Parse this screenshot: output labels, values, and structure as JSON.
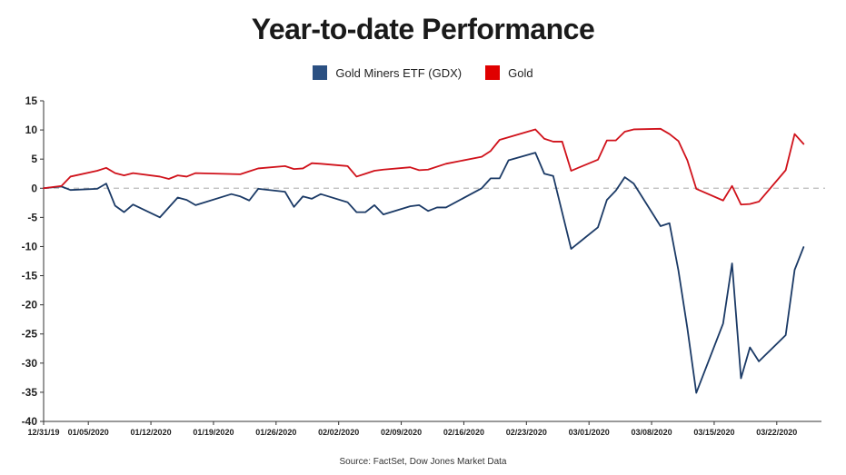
{
  "chart_data": {
    "type": "line",
    "title": "Year-to-date Performance",
    "xlabel": "",
    "ylabel": "",
    "ylim": [
      -40,
      15
    ],
    "yticks": [
      15,
      10,
      5,
      0,
      -5,
      -10,
      -15,
      -20,
      -25,
      -30,
      -35,
      -40
    ],
    "x_range": [
      "2019-12-31",
      "2020-03-27"
    ],
    "x_tick_labels": [
      {
        "date": "2019-12-31",
        "label": "12/31/19"
      },
      {
        "date": "2020-01-05",
        "label": "01/05/2020"
      },
      {
        "date": "2020-01-12",
        "label": "01/12/2020"
      },
      {
        "date": "2020-01-19",
        "label": "01/19/2020"
      },
      {
        "date": "2020-01-26",
        "label": "01/26/2020"
      },
      {
        "date": "2020-02-02",
        "label": "02/02/2020"
      },
      {
        "date": "2020-02-09",
        "label": "02/09/2020"
      },
      {
        "date": "2020-02-16",
        "label": "02/16/2020"
      },
      {
        "date": "2020-02-23",
        "label": "02/23/2020"
      },
      {
        "date": "2020-03-01",
        "label": "03/01/2020"
      },
      {
        "date": "2020-03-08",
        "label": "03/08/2020"
      },
      {
        "date": "2020-03-15",
        "label": "03/15/2020"
      },
      {
        "date": "2020-03-22",
        "label": "03/22/2020"
      }
    ],
    "zero_line": true,
    "grid": false,
    "legend_position": "top-center",
    "series": [
      {
        "name": "Gold Miners ETF (GDX)",
        "color": "#1b3a66",
        "legend_color": "#2b5082",
        "points": [
          [
            "2019-12-31",
            0.0
          ],
          [
            "2020-01-02",
            0.3
          ],
          [
            "2020-01-03",
            -0.3
          ],
          [
            "2020-01-06",
            -0.1
          ],
          [
            "2020-01-07",
            0.8
          ],
          [
            "2020-01-08",
            -3.0
          ],
          [
            "2020-01-09",
            -4.1
          ],
          [
            "2020-01-10",
            -2.8
          ],
          [
            "2020-01-13",
            -5.0
          ],
          [
            "2020-01-15",
            -1.6
          ],
          [
            "2020-01-16",
            -2.0
          ],
          [
            "2020-01-17",
            -2.9
          ],
          [
            "2020-01-21",
            -1.0
          ],
          [
            "2020-01-22",
            -1.4
          ],
          [
            "2020-01-23",
            -2.1
          ],
          [
            "2020-01-24",
            -0.1
          ],
          [
            "2020-01-27",
            -0.6
          ],
          [
            "2020-01-28",
            -3.2
          ],
          [
            "2020-01-29",
            -1.4
          ],
          [
            "2020-01-30",
            -1.8
          ],
          [
            "2020-01-31",
            -1.0
          ],
          [
            "2020-02-03",
            -2.4
          ],
          [
            "2020-02-04",
            -4.1
          ],
          [
            "2020-02-05",
            -4.1
          ],
          [
            "2020-02-06",
            -2.9
          ],
          [
            "2020-02-07",
            -4.5
          ],
          [
            "2020-02-10",
            -3.1
          ],
          [
            "2020-02-11",
            -2.9
          ],
          [
            "2020-02-12",
            -3.9
          ],
          [
            "2020-02-13",
            -3.3
          ],
          [
            "2020-02-14",
            -3.3
          ],
          [
            "2020-02-18",
            0.0
          ],
          [
            "2020-02-19",
            1.7
          ],
          [
            "2020-02-20",
            1.7
          ],
          [
            "2020-02-21",
            4.8
          ],
          [
            "2020-02-24",
            6.1
          ],
          [
            "2020-02-25",
            2.5
          ],
          [
            "2020-02-26",
            2.1
          ],
          [
            "2020-02-28",
            -10.4
          ],
          [
            "2020-03-02",
            -6.7
          ],
          [
            "2020-03-03",
            -2.0
          ],
          [
            "2020-03-04",
            -0.4
          ],
          [
            "2020-03-05",
            1.9
          ],
          [
            "2020-03-06",
            0.8
          ],
          [
            "2020-03-09",
            -6.5
          ],
          [
            "2020-03-10",
            -6.0
          ],
          [
            "2020-03-11",
            -14.1
          ],
          [
            "2020-03-12",
            -24.0
          ],
          [
            "2020-03-13",
            -35.1
          ],
          [
            "2020-03-16",
            -23.2
          ],
          [
            "2020-03-17",
            -12.9
          ],
          [
            "2020-03-18",
            -32.6
          ],
          [
            "2020-03-19",
            -27.3
          ],
          [
            "2020-03-20",
            -29.7
          ],
          [
            "2020-03-23",
            -25.2
          ],
          [
            "2020-03-24",
            -14.0
          ],
          [
            "2020-03-25",
            -10.1
          ]
        ]
      },
      {
        "name": "Gold",
        "color": "#d0121b",
        "legend_color": "#e00000",
        "points": [
          [
            "2019-12-31",
            0.0
          ],
          [
            "2020-01-02",
            0.4
          ],
          [
            "2020-01-03",
            2.0
          ],
          [
            "2020-01-06",
            3.0
          ],
          [
            "2020-01-07",
            3.5
          ],
          [
            "2020-01-08",
            2.6
          ],
          [
            "2020-01-09",
            2.2
          ],
          [
            "2020-01-10",
            2.6
          ],
          [
            "2020-01-13",
            2.0
          ],
          [
            "2020-01-14",
            1.6
          ],
          [
            "2020-01-15",
            2.2
          ],
          [
            "2020-01-16",
            2.0
          ],
          [
            "2020-01-17",
            2.6
          ],
          [
            "2020-01-22",
            2.4
          ],
          [
            "2020-01-23",
            2.9
          ],
          [
            "2020-01-24",
            3.4
          ],
          [
            "2020-01-27",
            3.8
          ],
          [
            "2020-01-28",
            3.3
          ],
          [
            "2020-01-29",
            3.4
          ],
          [
            "2020-01-30",
            4.3
          ],
          [
            "2020-01-31",
            4.2
          ],
          [
            "2020-02-03",
            3.8
          ],
          [
            "2020-02-04",
            2.0
          ],
          [
            "2020-02-05",
            2.5
          ],
          [
            "2020-02-06",
            3.0
          ],
          [
            "2020-02-07",
            3.2
          ],
          [
            "2020-02-10",
            3.6
          ],
          [
            "2020-02-11",
            3.1
          ],
          [
            "2020-02-12",
            3.2
          ],
          [
            "2020-02-14",
            4.2
          ],
          [
            "2020-02-18",
            5.4
          ],
          [
            "2020-02-19",
            6.4
          ],
          [
            "2020-02-20",
            8.3
          ],
          [
            "2020-02-24",
            10.1
          ],
          [
            "2020-02-25",
            8.5
          ],
          [
            "2020-02-26",
            8.0
          ],
          [
            "2020-02-27",
            8.0
          ],
          [
            "2020-02-28",
            3.0
          ],
          [
            "2020-03-02",
            4.9
          ],
          [
            "2020-03-03",
            8.2
          ],
          [
            "2020-03-04",
            8.2
          ],
          [
            "2020-03-05",
            9.7
          ],
          [
            "2020-03-06",
            10.1
          ],
          [
            "2020-03-09",
            10.2
          ],
          [
            "2020-03-10",
            9.3
          ],
          [
            "2020-03-11",
            8.1
          ],
          [
            "2020-03-12",
            4.8
          ],
          [
            "2020-03-13",
            -0.1
          ],
          [
            "2020-03-16",
            -2.1
          ],
          [
            "2020-03-17",
            0.4
          ],
          [
            "2020-03-18",
            -2.8
          ],
          [
            "2020-03-19",
            -2.7
          ],
          [
            "2020-03-20",
            -2.3
          ],
          [
            "2020-03-23",
            3.1
          ],
          [
            "2020-03-24",
            9.3
          ],
          [
            "2020-03-25",
            7.6
          ]
        ]
      }
    ]
  },
  "source": "Source: FactSet, Dow Jones Market Data"
}
